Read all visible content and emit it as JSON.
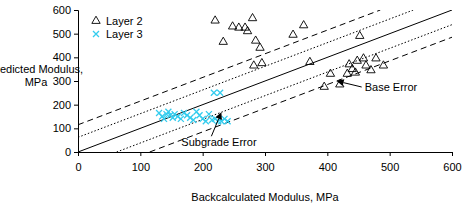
{
  "chart_data": {
    "type": "scatter",
    "xlabel": "Backcalculated Modulus, MPa",
    "ylabel": [
      "Predicted Modulus,",
      "MPa"
    ],
    "xlim": [
      0,
      600
    ],
    "ylim": [
      0,
      600
    ],
    "xticks": [
      0,
      100,
      200,
      300,
      400,
      500,
      600
    ],
    "yticks": [
      0,
      100,
      200,
      300,
      400,
      500,
      600
    ],
    "grid": false,
    "legend": "upper left",
    "series": [
      {
        "name": "Layer 2",
        "type": "scatter",
        "marker": "triangle",
        "color": "#000000",
        "x": [
          220,
          233,
          248,
          258,
          268,
          272,
          280,
          285,
          292,
          282,
          295,
          345,
          362,
          372,
          395,
          405,
          420,
          432,
          435,
          440,
          445,
          448,
          452,
          458,
          462,
          470,
          478,
          490
        ],
        "values": [
          555,
          465,
          530,
          525,
          525,
          510,
          565,
          470,
          440,
          365,
          375,
          495,
          535,
          380,
          275,
          330,
          285,
          330,
          370,
          350,
          335,
          385,
          490,
          395,
          365,
          345,
          395,
          365
        ]
      },
      {
        "name": "Layer 3",
        "type": "scatter",
        "marker": "x",
        "color": "#33ccee",
        "x": [
          130,
          135,
          138,
          142,
          145,
          148,
          152,
          155,
          160,
          165,
          170,
          175,
          180,
          185,
          190,
          195,
          200,
          205,
          210,
          215,
          220,
          225,
          230,
          235,
          240,
          218,
          228
        ],
        "values": [
          165,
          150,
          140,
          160,
          170,
          155,
          145,
          160,
          150,
          140,
          165,
          155,
          145,
          135,
          170,
          155,
          140,
          130,
          160,
          135,
          140,
          130,
          130,
          140,
          130,
          250,
          250
        ]
      },
      {
        "type": "line",
        "line_style": "solid",
        "color": "#000000",
        "x": [
          0,
          600
        ],
        "values": [
          0,
          600
        ]
      },
      {
        "type": "line",
        "line_style": "dotted",
        "color": "#000000",
        "x": [
          0,
          538
        ],
        "values": [
          62,
          600
        ]
      },
      {
        "type": "line",
        "line_style": "dotted",
        "color": "#000000",
        "x": [
          62,
          600
        ],
        "values": [
          0,
          538
        ]
      },
      {
        "type": "line",
        "line_style": "dashed",
        "color": "#000000",
        "x": [
          0,
          485
        ],
        "values": [
          115,
          600
        ]
      },
      {
        "type": "line",
        "line_style": "dashed",
        "color": "#000000",
        "x": [
          115,
          600
        ],
        "values": [
          0,
          485
        ]
      }
    ],
    "annotations": [
      {
        "text": "Base Error",
        "x": 415,
        "y": 300
      },
      {
        "text": "Subgrade Error",
        "x": 230,
        "y": 168
      }
    ]
  }
}
